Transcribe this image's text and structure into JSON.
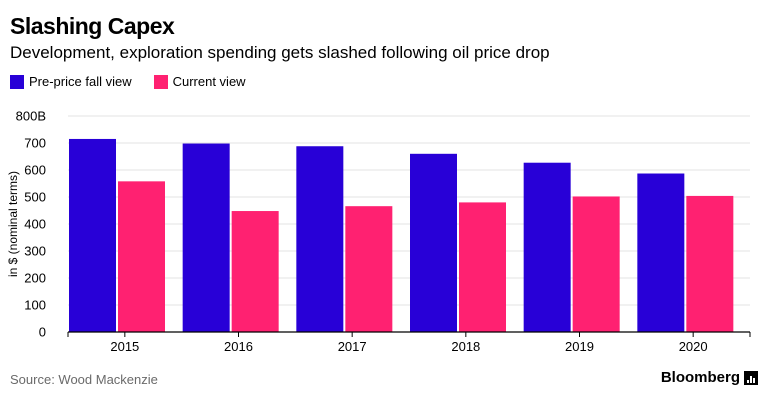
{
  "header": {
    "title": "Slashing Capex",
    "subtitle": "Development, exploration spending gets slashed following oil price drop"
  },
  "legend": [
    {
      "label": "Pre-price fall view",
      "color": "#2800d7"
    },
    {
      "label": "Current view",
      "color": "#ff2171"
    }
  ],
  "footer": {
    "source": "Source: Wood Mackenzie",
    "brand": "Bloomberg",
    "brand_icon": "bloomberg-bars-icon"
  },
  "chart_data": {
    "type": "bar",
    "categories": [
      "2015",
      "2016",
      "2017",
      "2018",
      "2019",
      "2020"
    ],
    "series": [
      {
        "name": "Pre-price fall view",
        "values": [
          715,
          698,
          688,
          660,
          627,
          587
        ]
      },
      {
        "name": "Current view",
        "values": [
          558,
          448,
          466,
          480,
          502,
          504
        ]
      }
    ],
    "ylabel": "in $ (nominal terms)",
    "ylim": [
      0,
      800
    ],
    "yticks": [
      0,
      100,
      200,
      300,
      400,
      500,
      600,
      700,
      800
    ],
    "yticklabels": [
      "0",
      "100",
      "200",
      "300",
      "400",
      "500",
      "600",
      "700",
      "800B"
    ],
    "grid": true
  }
}
